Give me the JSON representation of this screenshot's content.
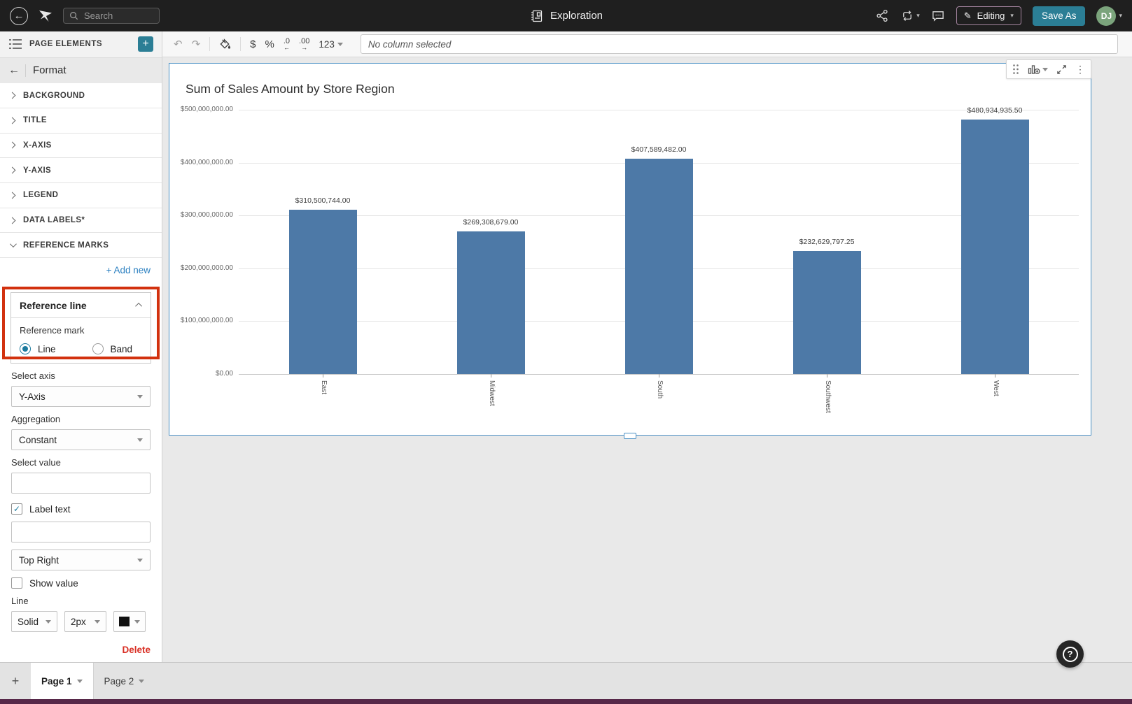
{
  "topbar": {
    "search_placeholder": "Search",
    "doc_title": "Exploration",
    "editing_label": "Editing",
    "save_as_label": "Save As",
    "avatar_initials": "DJ"
  },
  "toolbar": {
    "undo": "↶",
    "redo": "↷",
    "currency": "$",
    "percent": "%",
    "decimal_decrease": ".0",
    "decimal_increase": ".00",
    "arrow_left": "←",
    "arrow_right": "→",
    "number_format": "123",
    "no_column_selected": "No column selected"
  },
  "sidebar": {
    "header": "PAGE ELEMENTS",
    "panel_title": "Format",
    "sections": [
      "BACKGROUND",
      "TITLE",
      "X-AXIS",
      "Y-AXIS",
      "LEGEND",
      "DATA LABELS*"
    ],
    "reference_marks_label": "REFERENCE MARKS",
    "add_new": "+ Add new",
    "reference_line": {
      "title": "Reference line",
      "mark_label": "Reference mark",
      "radio_line": "Line",
      "radio_band": "Band",
      "select_axis_label": "Select axis",
      "select_axis_value": "Y-Axis",
      "aggregation_label": "Aggregation",
      "aggregation_value": "Constant",
      "select_value_label": "Select value",
      "label_text_label": "Label text",
      "position_value": "Top Right",
      "show_value_label": "Show value",
      "line_label": "Line",
      "line_style_value": "Solid",
      "line_width_value": "2px",
      "delete_label": "Delete"
    }
  },
  "chart_data": {
    "type": "bar",
    "title": "Sum of Sales Amount by Store Region",
    "categories": [
      "East",
      "Midwest",
      "South",
      "Southwest",
      "West"
    ],
    "values": [
      310500744.0,
      269308679.0,
      407589482.0,
      232629797.25,
      480934935.5
    ],
    "data_labels": [
      "$310,500,744.00",
      "$269,308,679.00",
      "$407,589,482.00",
      "$232,629,797.25",
      "$480,934,935.50"
    ],
    "yticks": [
      "$500,000,000.00",
      "$400,000,000.00",
      "$300,000,000.00",
      "$200,000,000.00",
      "$100,000,000.00",
      "$0.00"
    ],
    "ylim": [
      0,
      500000000
    ],
    "xlabel": "",
    "ylabel": "",
    "bar_color": "#4d79a7",
    "grid": true,
    "legend": false
  },
  "pages": {
    "page1": "Page 1",
    "page2": "Page 2"
  },
  "icons": {
    "caret": "▾",
    "kebab": "⋮",
    "plus": "+",
    "back_arrow": "←",
    "check": "✓",
    "question": "?",
    "pencil": "✎"
  },
  "colors": {
    "accent_teal": "#2b7e95",
    "link_blue": "#2a7fc0",
    "annotation_red": "#d2310e",
    "delete_red": "#d93025",
    "bar_blue": "#4d79a7",
    "selection_blue": "#4a90c5",
    "topbar_dark": "#1f1f1f",
    "brand_strip": "#572849"
  }
}
